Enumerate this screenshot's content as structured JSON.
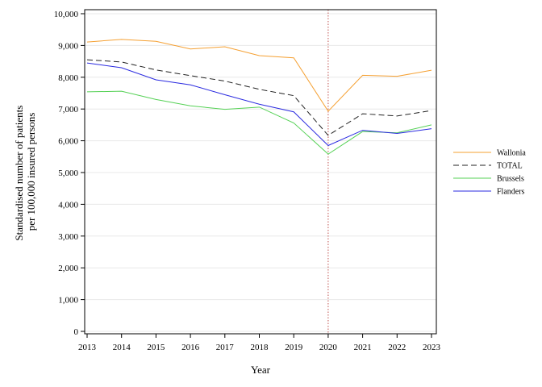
{
  "chart_data": {
    "type": "line",
    "title": "",
    "xlabel": "Year",
    "ylabel_lines": [
      "Standardised number of patients",
      "per 100,000 insured persons"
    ],
    "x": [
      2013,
      2014,
      2015,
      2016,
      2017,
      2018,
      2019,
      2020,
      2021,
      2022,
      2023
    ],
    "x_tick_labels": [
      "2013",
      "2014",
      "2015",
      "2016",
      "2017",
      "2018",
      "2019",
      "2020",
      "2021",
      "2022",
      "2023"
    ],
    "ylim": [
      0,
      10000
    ],
    "y_ticks": [
      0,
      1000,
      2000,
      3000,
      4000,
      5000,
      6000,
      7000,
      8000,
      9000,
      10000
    ],
    "y_tick_labels": [
      "0",
      "1,000",
      "2,000",
      "3,000",
      "4,000",
      "5,000",
      "6,000",
      "7,000",
      "8,000",
      "9,000",
      "10,000"
    ],
    "grid": "horizontal",
    "reference_line": {
      "x": 2020,
      "color": "#c0504d",
      "style": "dotted"
    },
    "legend_position": "right",
    "series": [
      {
        "name": "Wallonia",
        "color": "#f5a032",
        "dash": "solid",
        "values": [
          9110,
          9190,
          9130,
          8890,
          8960,
          8680,
          8610,
          6930,
          8060,
          8030,
          8220
        ]
      },
      {
        "name": "TOTAL",
        "color": "#222222",
        "dash": "dashed",
        "values": [
          8550,
          8480,
          8230,
          8050,
          7880,
          7620,
          7420,
          6170,
          6850,
          6780,
          6950
        ]
      },
      {
        "name": "Brussels",
        "color": "#55d155",
        "dash": "solid",
        "values": [
          7540,
          7560,
          7300,
          7100,
          6990,
          7060,
          6560,
          5580,
          6290,
          6250,
          6500
        ]
      },
      {
        "name": "Flanders",
        "color": "#2a2ae0",
        "dash": "solid",
        "values": [
          8450,
          8300,
          7920,
          7760,
          7450,
          7150,
          6910,
          5850,
          6330,
          6230,
          6380
        ]
      }
    ]
  }
}
